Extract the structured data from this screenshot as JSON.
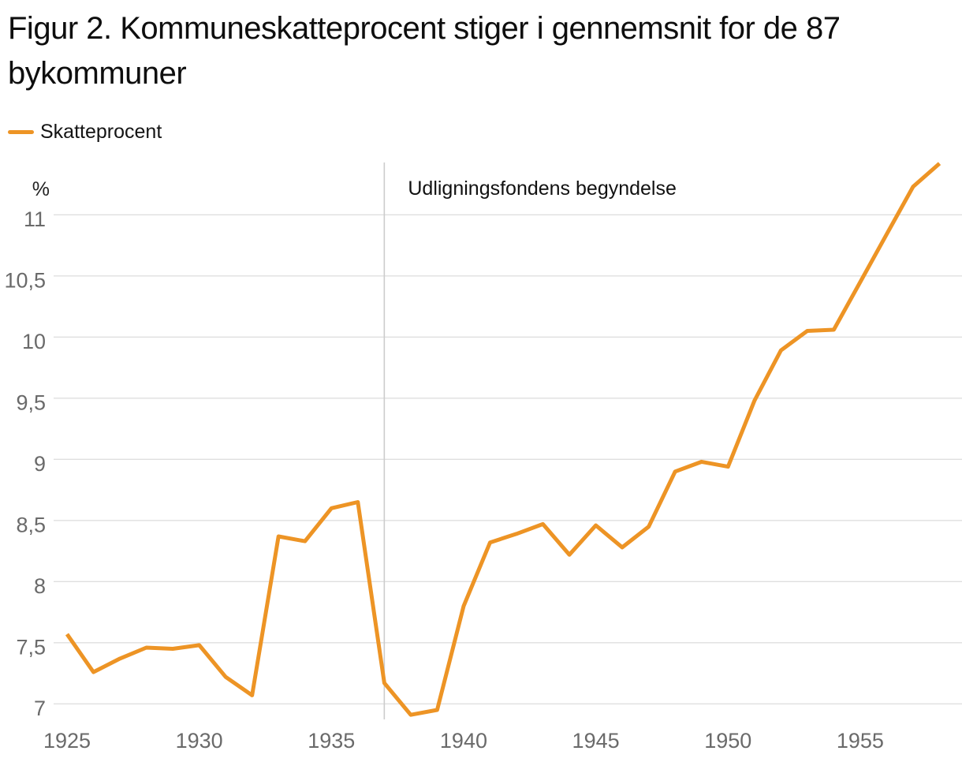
{
  "title": "Figur 2. Kommuneskatteprocent stiger i gennemsnit for de 87 bykommuner",
  "legend": {
    "label": "Skatteprocent",
    "color": "#ED9425"
  },
  "chart_data": {
    "type": "line",
    "title": "Figur 2. Kommuneskatteprocent stiger i gennemsnit for de 87 bykommuner",
    "x": [
      1925,
      1926,
      1927,
      1928,
      1929,
      1930,
      1931,
      1932,
      1933,
      1934,
      1935,
      1936,
      1937,
      1938,
      1939,
      1940,
      1941,
      1942,
      1943,
      1944,
      1945,
      1946,
      1947,
      1948,
      1949,
      1950,
      1951,
      1952,
      1953,
      1954,
      1955,
      1956,
      1957,
      1958
    ],
    "series": [
      {
        "name": "Skatteprocent",
        "color": "#ED9425",
        "values": [
          7.57,
          7.26,
          7.37,
          7.46,
          7.45,
          7.48,
          7.22,
          7.07,
          8.37,
          8.33,
          8.6,
          8.65,
          7.17,
          6.91,
          6.95,
          7.8,
          8.32,
          8.39,
          8.47,
          8.22,
          8.46,
          8.28,
          8.45,
          8.9,
          8.98,
          8.94,
          9.48,
          9.89,
          10.05,
          10.06,
          10.45,
          10.84,
          11.23,
          11.42
        ]
      }
    ],
    "xlabel": "",
    "ylabel": "%",
    "xlim": [
      1925,
      1958.8
    ],
    "ylim": [
      6.85,
      11.45
    ],
    "grid": true,
    "legend_position": "top-left",
    "y_ticks": [
      {
        "value": 7,
        "label": "7"
      },
      {
        "value": 7.5,
        "label": "7,5"
      },
      {
        "value": 8,
        "label": "8"
      },
      {
        "value": 8.5,
        "label": "8,5"
      },
      {
        "value": 9,
        "label": "9"
      },
      {
        "value": 9.5,
        "label": "9,5"
      },
      {
        "value": 10,
        "label": "10"
      },
      {
        "value": 10.5,
        "label": "10,5"
      },
      {
        "value": 11,
        "label": "11"
      }
    ],
    "x_ticks": [
      {
        "value": 1925,
        "label": "1925"
      },
      {
        "value": 1930,
        "label": "1930"
      },
      {
        "value": 1935,
        "label": "1935"
      },
      {
        "value": 1940,
        "label": "1940"
      },
      {
        "value": 1945,
        "label": "1945"
      },
      {
        "value": 1950,
        "label": "1950"
      },
      {
        "value": 1955,
        "label": "1955"
      }
    ],
    "annotation": {
      "label": "Udligningsfondens begyndelse",
      "x": 1937
    }
  },
  "colors": {
    "line": "#ED9425",
    "grid": "#dfdfdf",
    "annotation_line": "#cccccc",
    "axis_text": "#6a6a6a",
    "title_text": "#0e0e0e"
  }
}
